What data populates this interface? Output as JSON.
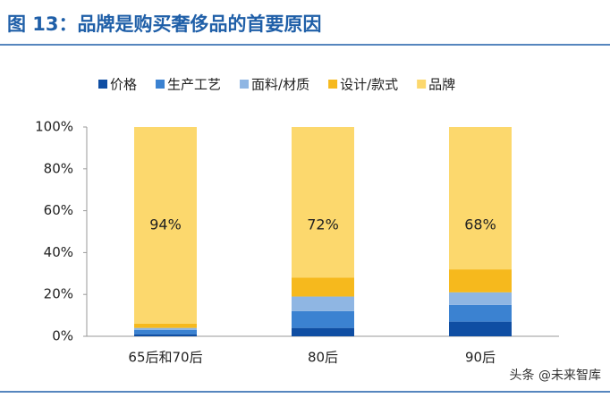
{
  "chart_data": {
    "type": "stacked_bar",
    "title": "图 13：品牌是购买奢侈品的首要原因",
    "categories": [
      "65后和70后",
      "80后",
      "90后"
    ],
    "series": [
      {
        "name": "价格",
        "color": "#0f4ea3",
        "values": [
          1,
          4,
          7
        ]
      },
      {
        "name": "生产工艺",
        "color": "#3b82d1",
        "values": [
          2,
          8,
          8
        ]
      },
      {
        "name": "面料/材质",
        "color": "#8fb6e3",
        "values": [
          1,
          7,
          6
        ]
      },
      {
        "name": "设计/款式",
        "color": "#f6b91d",
        "values": [
          2,
          9,
          11
        ]
      },
      {
        "name": "品牌",
        "color": "#fcd86d",
        "values": [
          94,
          72,
          68
        ],
        "value_labels": [
          "94%",
          "72%",
          "68%"
        ]
      }
    ],
    "ylim": [
      0,
      100
    ],
    "yticks": [
      {
        "value": 0,
        "label": "0%"
      },
      {
        "value": 20,
        "label": "20%"
      },
      {
        "value": 40,
        "label": "40%"
      },
      {
        "value": 60,
        "label": "60%"
      },
      {
        "value": 80,
        "label": "80%"
      },
      {
        "value": 100,
        "label": "100%"
      }
    ],
    "watermark": "头条 @未来智库"
  }
}
